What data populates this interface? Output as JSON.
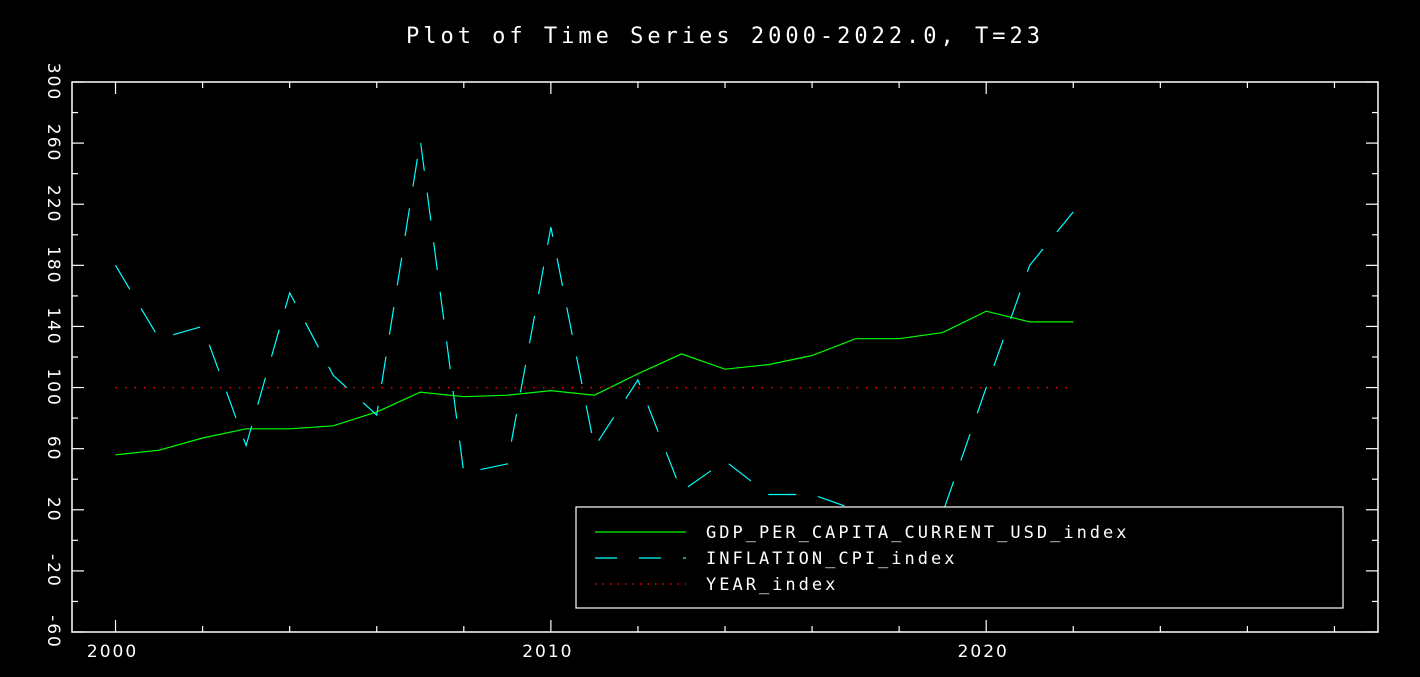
{
  "chart_data": {
    "type": "line",
    "title": "Plot of Time Series 2000-2022.0, T=23",
    "xlabel": "",
    "ylabel": "",
    "xlim": [
      1999,
      2029
    ],
    "ylim": [
      -60,
      300
    ],
    "x_ticks": [
      2000,
      2010,
      2020
    ],
    "x_tick_labels": [
      "2000",
      "2010",
      "2020"
    ],
    "y_ticks": [
      -60,
      -20,
      20,
      60,
      100,
      140,
      180,
      220,
      260,
      300
    ],
    "y_tick_labels": [
      "-60",
      "-20",
      "20",
      "60",
      "100",
      "140",
      "180",
      "220",
      "260",
      "300"
    ],
    "grid": false,
    "legend_position": "bottom-right",
    "x": [
      2000,
      2001,
      2002,
      2003,
      2004,
      2005,
      2006,
      2007,
      2008,
      2009,
      2010,
      2011,
      2012,
      2013,
      2014,
      2015,
      2016,
      2017,
      2018,
      2019,
      2020,
      2021,
      2022
    ],
    "series": [
      {
        "name": "GDP_PER_CAPITA_CURRENT_USD_index",
        "color": "#00ff00",
        "style": "solid",
        "values": [
          56,
          59,
          67,
          73,
          73,
          75,
          84,
          97,
          94,
          95,
          98,
          95,
          109,
          122,
          112,
          115,
          121,
          132,
          132,
          136,
          150,
          143,
          143
        ]
      },
      {
        "name": "INFLATION_CPI_index",
        "color": "#00ffff",
        "style": "dashed",
        "values": [
          180,
          132,
          140,
          62,
          162,
          108,
          82,
          262,
          44,
          50,
          205,
          61,
          105,
          32,
          52,
          30,
          30,
          20,
          0,
          18,
          100,
          180,
          215
        ]
      },
      {
        "name": "YEAR_index",
        "color": "#ff0000",
        "style": "dotted",
        "values": [
          100,
          100,
          100,
          100,
          100,
          100,
          100,
          100,
          100,
          100,
          100,
          100,
          100,
          100,
          100,
          100,
          100,
          100,
          100,
          100,
          100,
          100,
          100
        ]
      }
    ]
  }
}
